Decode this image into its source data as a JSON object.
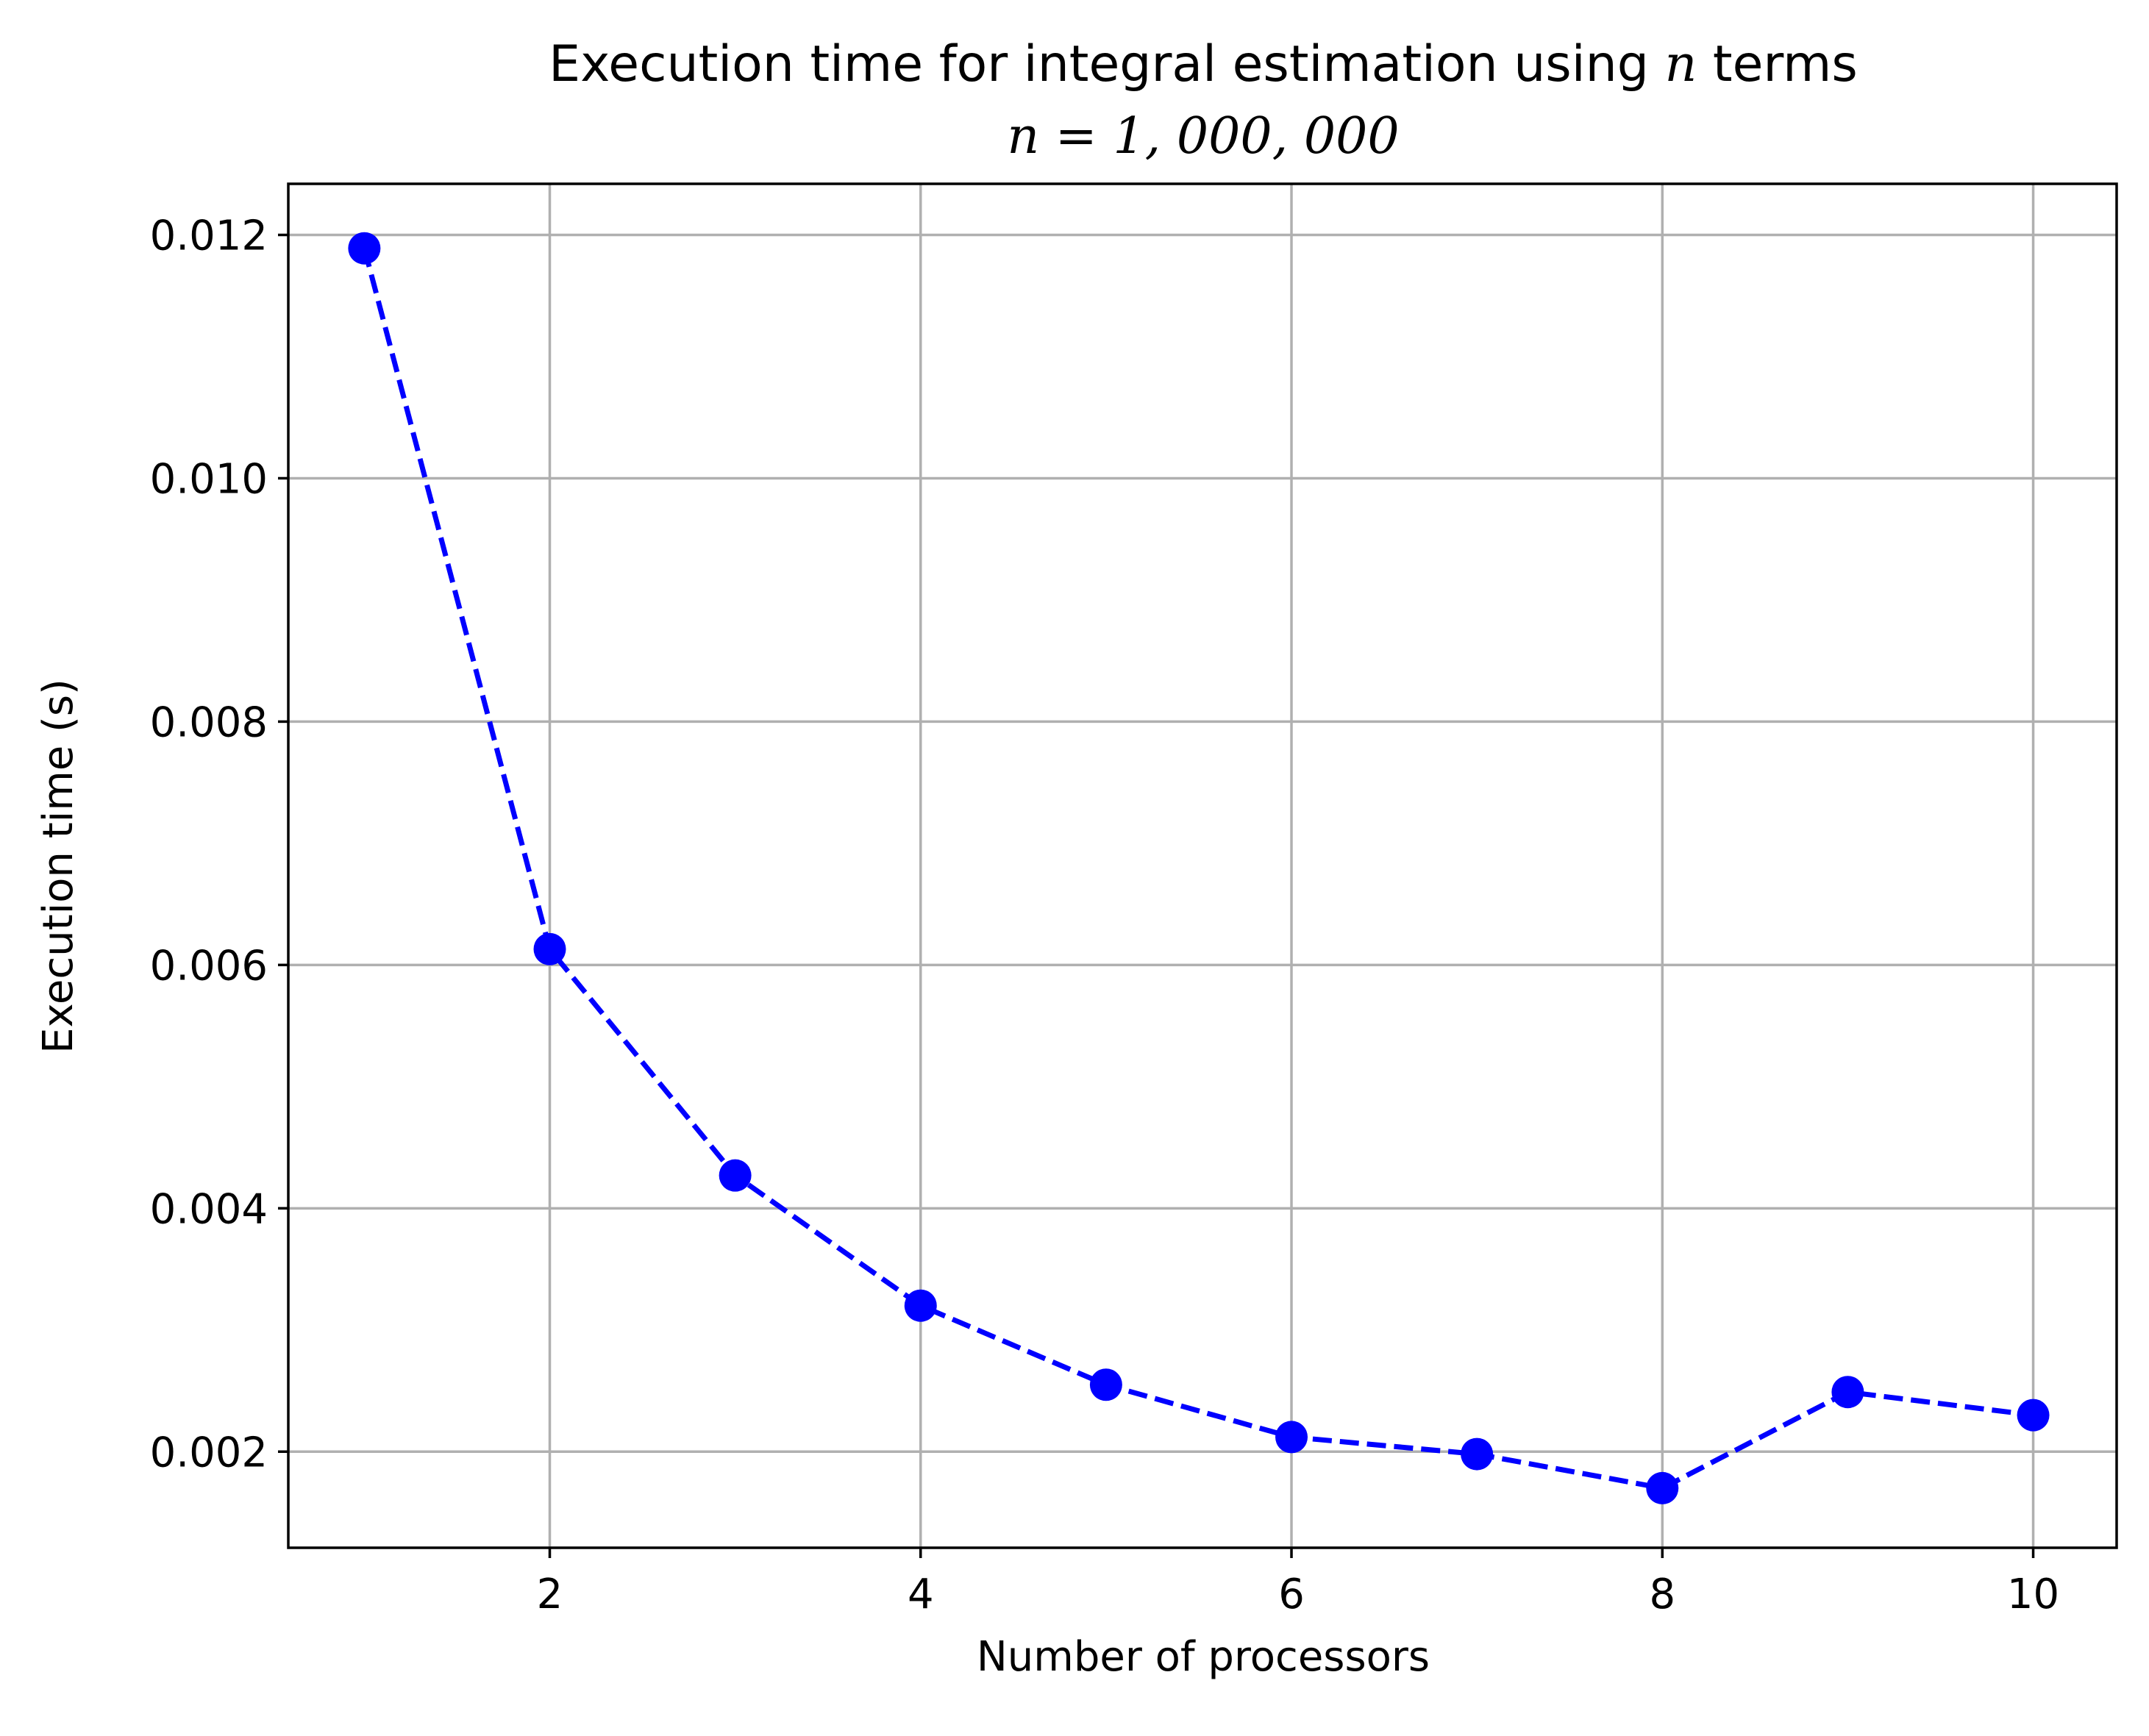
{
  "chart_data": {
    "type": "line",
    "title_line1_prefix": "Execution time for integral estimation using ",
    "title_line1_var": "n",
    "title_line1_suffix": " terms",
    "title_line2": "n = 1, 000, 000",
    "xlabel": "Number of processors",
    "ylabel": "Execution time (s)",
    "x": [
      1,
      2,
      3,
      4,
      5,
      6,
      7,
      8,
      9,
      10
    ],
    "series": [
      {
        "values": [
          0.01189,
          0.00613,
          0.00427,
          0.0032,
          0.00255,
          0.00212,
          0.00198,
          0.0017,
          0.00249,
          0.0023
        ],
        "color": "#0000ff",
        "line_style": "dashed",
        "marker": "circle"
      }
    ],
    "xlim": [
      0.59,
      10.45
    ],
    "ylim": [
      0.00121,
      0.01242
    ],
    "xticks": [
      2,
      4,
      6,
      8,
      10
    ],
    "xtick_labels": [
      "2",
      "4",
      "6",
      "8",
      "10"
    ],
    "yticks": [
      0.002,
      0.004,
      0.006,
      0.008,
      0.01,
      0.012
    ],
    "ytick_labels": [
      "0.002",
      "0.004",
      "0.006",
      "0.008",
      "0.010",
      "0.012"
    ],
    "grid": true
  }
}
